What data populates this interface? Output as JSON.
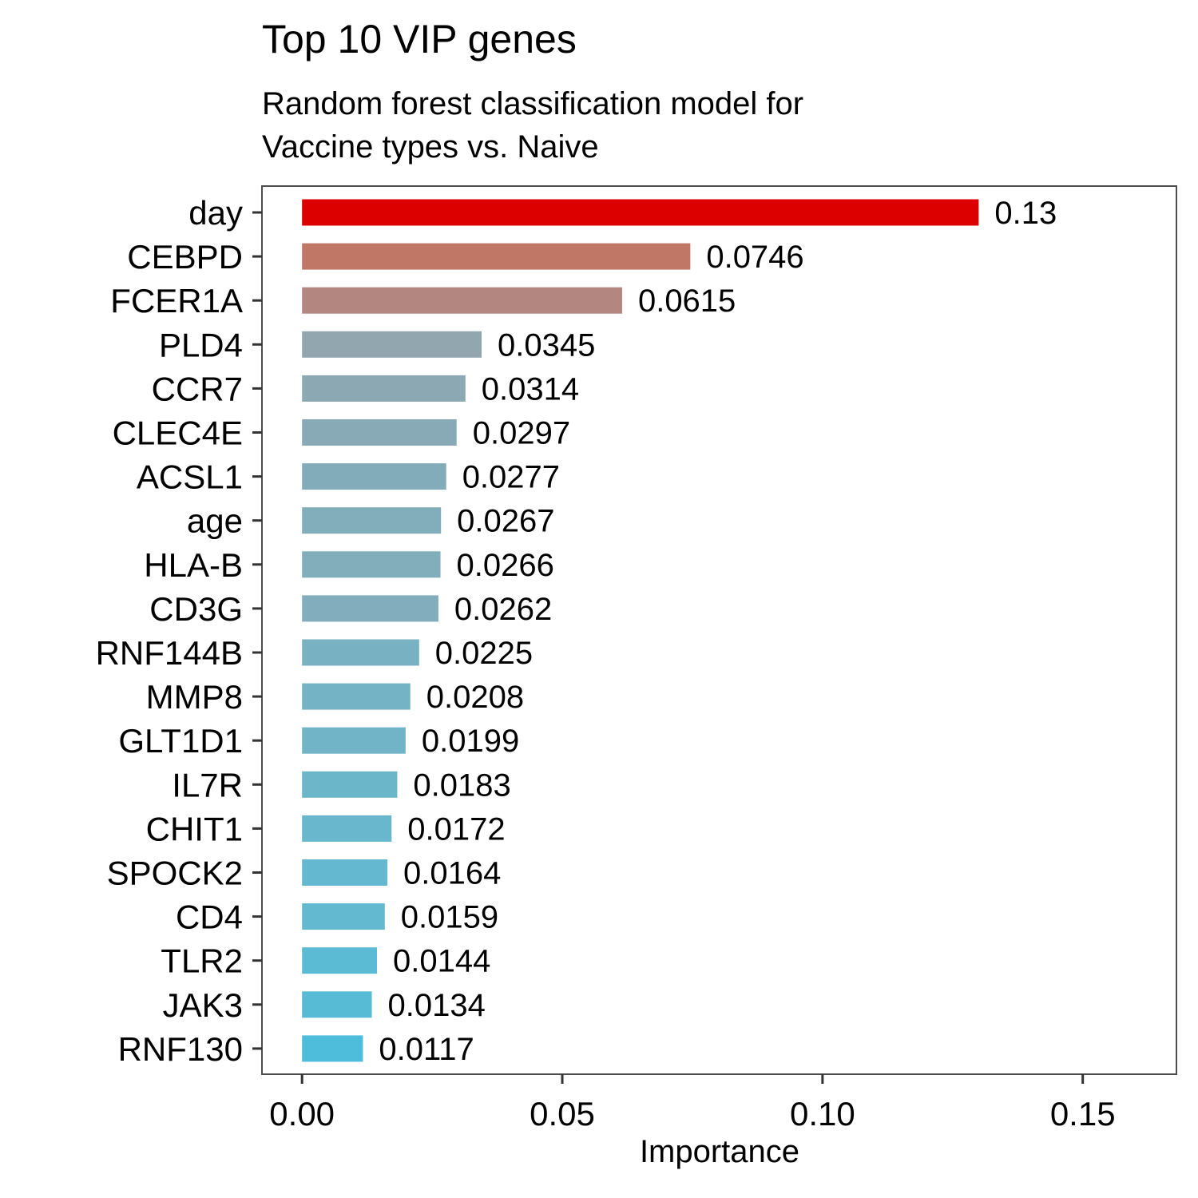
{
  "chart_data": {
    "type": "bar",
    "orientation": "horizontal",
    "title": "Top 10 VIP genes",
    "subtitle": "Random forest classification model for\nVaccine types vs. Naive",
    "xlabel": "Importance",
    "ylabel": "",
    "xlim": [
      -0.0077,
      0.168
    ],
    "xticks": [
      0.0,
      0.05,
      0.1,
      0.15
    ],
    "xtick_labels": [
      "0.00",
      "0.05",
      "0.10",
      "0.15"
    ],
    "grid": false,
    "legend": "none",
    "categories": [
      "day",
      "CEBPD",
      "FCER1A",
      "PLD4",
      "CCR7",
      "CLEC4E",
      "ACSL1",
      "age",
      "HLA-B",
      "CD3G",
      "RNF144B",
      "MMP8",
      "GLT1D1",
      "IL7R",
      "CHIT1",
      "SPOCK2",
      "CD4",
      "TLR2",
      "JAK3",
      "RNF130"
    ],
    "values": [
      0.13,
      0.0746,
      0.0615,
      0.0345,
      0.0314,
      0.0297,
      0.0277,
      0.0267,
      0.0266,
      0.0262,
      0.0225,
      0.0208,
      0.0199,
      0.0183,
      0.0172,
      0.0164,
      0.0159,
      0.0144,
      0.0134,
      0.0117
    ],
    "value_labels": [
      "0.13",
      "0.0746",
      "0.0615",
      "0.0345",
      "0.0314",
      "0.0297",
      "0.0277",
      "0.0267",
      "0.0266",
      "0.0262",
      "0.0225",
      "0.0208",
      "0.0199",
      "0.0183",
      "0.0172",
      "0.0164",
      "0.0159",
      "0.0144",
      "0.0134",
      "0.0117"
    ],
    "colors": [
      "#DD0000",
      "#C07766",
      "#B3877F",
      "#91A6AF",
      "#8BA8B3",
      "#88AAB6",
      "#83ACBA",
      "#82ADBB",
      "#82ADBB",
      "#81ADBC",
      "#78B1C2",
      "#74B3C5",
      "#71B4C7",
      "#6CB6CA",
      "#68B7CD",
      "#64B8CF",
      "#62B9D0",
      "#5BBAD4",
      "#57BBD6",
      "#4EBCDB"
    ],
    "panel_border_color": "#4D4D4D"
  }
}
